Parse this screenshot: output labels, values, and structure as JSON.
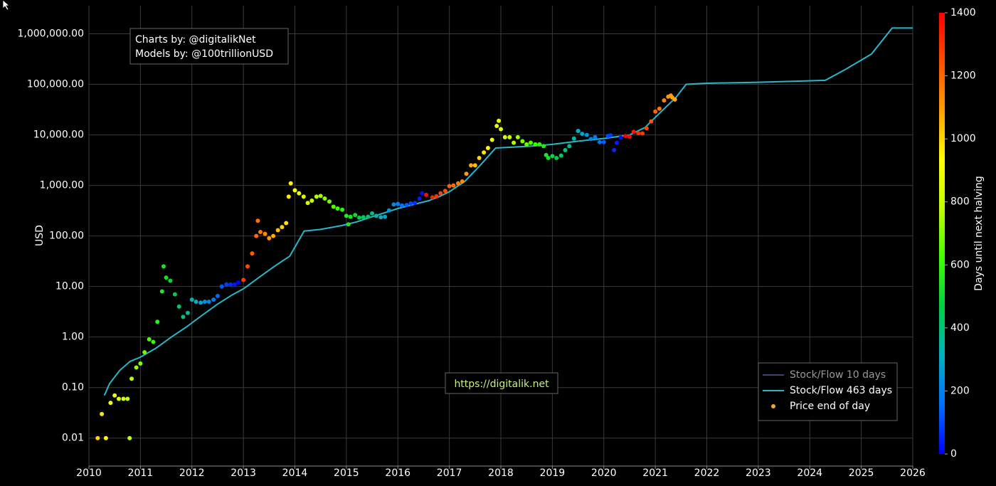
{
  "chart_data": {
    "type": "scatter",
    "log_y": true,
    "grid": true,
    "xlim": [
      2010,
      2026
    ],
    "ylim": [
      0.0028,
      3600000
    ],
    "xticks": [
      2010,
      2011,
      2012,
      2013,
      2014,
      2015,
      2016,
      2017,
      2018,
      2019,
      2020,
      2021,
      2022,
      2023,
      2024,
      2025,
      2026
    ],
    "yticks": [
      {
        "value": 0.01,
        "label": "0.01"
      },
      {
        "value": 0.1,
        "label": "0.10"
      },
      {
        "value": 1,
        "label": "1.00"
      },
      {
        "value": 10,
        "label": "10.00"
      },
      {
        "value": 100,
        "label": "100.00"
      },
      {
        "value": 1000,
        "label": "1,000.00"
      },
      {
        "value": 10000,
        "label": "10,000.00"
      },
      {
        "value": 100000,
        "label": "100,000.00"
      },
      {
        "value": 1000000,
        "label": "1,000,000.00"
      }
    ],
    "ylabel": "USD",
    "annotations": [
      "Charts by: @digitalikNet",
      "Models by: @100trillionUSD",
      "https://digitalik.net"
    ],
    "legend": "lower right",
    "colorbar": {
      "label": "Days until next halving",
      "lim": [
        0,
        1400
      ],
      "ticks": [
        0,
        200,
        400,
        600,
        800,
        1000,
        1200,
        1400
      ],
      "colorscale": [
        "#0000ff",
        "#0070ff",
        "#00b0c0",
        "#00d040",
        "#40ff00",
        "#c0ff00",
        "#ffff00",
        "#ffa000",
        "#ff5000",
        "#ff0000"
      ]
    },
    "series": [
      {
        "name": "Stock/Flow 10 days",
        "type": "line",
        "color": "#3c4170",
        "x": [],
        "values": []
      },
      {
        "name": "Stock/Flow 463 days",
        "type": "line",
        "color": "#29b6c9",
        "x": [
          2010.3,
          2010.4,
          2010.6,
          2010.8,
          2011.0,
          2011.3,
          2011.6,
          2011.9,
          2012.2,
          2012.5,
          2012.8,
          2013.0,
          2013.3,
          2013.6,
          2013.9,
          2014.18,
          2014.5,
          2014.9,
          2015.2,
          2015.5,
          2015.8,
          2016.0,
          2016.3,
          2016.6,
          2016.8,
          2017.0,
          2017.3,
          2017.6,
          2017.9,
          2018.2,
          2018.6,
          2019.0,
          2019.5,
          2020.0,
          2020.5,
          2020.8,
          2021.1,
          2021.4,
          2021.6,
          2022.0,
          2023.0,
          2024.3,
          2024.7,
          2025.2,
          2025.6,
          2026.0
        ],
        "values": [
          0.07,
          0.12,
          0.22,
          0.33,
          0.4,
          0.6,
          1.0,
          1.6,
          2.7,
          4.5,
          7,
          9,
          15,
          25,
          40,
          125,
          135,
          160,
          190,
          240,
          300,
          350,
          420,
          500,
          600,
          750,
          1200,
          2500,
          5500,
          5700,
          6000,
          6500,
          7500,
          8500,
          10000,
          14000,
          28000,
          55000,
          100000,
          105000,
          110000,
          120000,
          200000,
          400000,
          1300000,
          1300000
        ]
      },
      {
        "name": "Price end of day",
        "type": "scatter",
        "color": "#f5a623",
        "x": [
          2010.17,
          2010.25,
          2010.33,
          2010.42,
          2010.5,
          2010.58,
          2010.67,
          2010.75,
          2010.79,
          2010.83,
          2010.92,
          2011.0,
          2011.08,
          2011.17,
          2011.25,
          2011.33,
          2011.42,
          2011.45,
          2011.5,
          2011.58,
          2011.67,
          2011.75,
          2011.83,
          2011.92,
          2012.0,
          2012.08,
          2012.17,
          2012.25,
          2012.33,
          2012.42,
          2012.5,
          2012.58,
          2012.67,
          2012.75,
          2012.83,
          2012.9,
          2013.0,
          2013.08,
          2013.17,
          2013.25,
          2013.28,
          2013.33,
          2013.42,
          2013.5,
          2013.58,
          2013.67,
          2013.75,
          2013.83,
          2013.88,
          2013.92,
          2014.0,
          2014.08,
          2014.17,
          2014.25,
          2014.33,
          2014.42,
          2014.5,
          2014.58,
          2014.67,
          2014.75,
          2014.83,
          2014.92,
          2015.0,
          2015.04,
          2015.08,
          2015.17,
          2015.25,
          2015.33,
          2015.42,
          2015.5,
          2015.58,
          2015.67,
          2015.75,
          2015.83,
          2015.92,
          2016.0,
          2016.08,
          2016.17,
          2016.25,
          2016.33,
          2016.42,
          2016.47,
          2016.55,
          2016.67,
          2016.75,
          2016.83,
          2016.92,
          2017.0,
          2017.08,
          2017.17,
          2017.25,
          2017.33,
          2017.42,
          2017.5,
          2017.58,
          2017.67,
          2017.75,
          2017.83,
          2017.92,
          2017.96,
          2018.0,
          2018.08,
          2018.17,
          2018.25,
          2018.33,
          2018.42,
          2018.5,
          2018.58,
          2018.67,
          2018.75,
          2018.83,
          2018.88,
          2018.92,
          2019.0,
          2019.08,
          2019.17,
          2019.25,
          2019.33,
          2019.42,
          2019.5,
          2019.58,
          2019.67,
          2019.75,
          2019.83,
          2019.92,
          2020.0,
          2020.08,
          2020.13,
          2020.2,
          2020.25,
          2020.33,
          2020.42,
          2020.5,
          2020.58,
          2020.67,
          2020.75,
          2020.83,
          2020.92,
          2021.0,
          2021.08,
          2021.17,
          2021.25,
          2021.3,
          2021.33,
          2021.38
        ],
        "values": [
          0.01,
          0.03,
          0.01,
          0.05,
          0.07,
          0.06,
          0.06,
          0.06,
          0.01,
          0.15,
          0.25,
          0.3,
          0.5,
          0.9,
          0.8,
          2.0,
          8.0,
          25,
          15,
          13,
          7,
          4,
          2.5,
          3.0,
          5.5,
          5.0,
          4.8,
          5.0,
          5.0,
          5.5,
          6.5,
          10,
          11,
          11,
          11,
          12,
          13.5,
          25,
          45,
          100,
          200,
          120,
          110,
          90,
          100,
          130,
          150,
          180,
          600,
          1100,
          800,
          700,
          600,
          450,
          500,
          600,
          620,
          550,
          480,
          380,
          350,
          330,
          250,
          170,
          240,
          260,
          230,
          235,
          240,
          280,
          250,
          235,
          240,
          320,
          420,
          430,
          400,
          410,
          440,
          450,
          550,
          700,
          650,
          580,
          610,
          700,
          780,
          970,
          1000,
          1100,
          1200,
          1700,
          2500,
          2500,
          3500,
          4500,
          5500,
          8000,
          15000,
          19000,
          13000,
          9000,
          9000,
          7000,
          9000,
          7500,
          6500,
          7000,
          6500,
          6500,
          6000,
          4000,
          3500,
          3800,
          3500,
          3900,
          5000,
          6000,
          8500,
          12000,
          10500,
          10000,
          8300,
          9000,
          7200,
          7200,
          9500,
          9800,
          5000,
          7000,
          8800,
          9500,
          9200,
          11500,
          10800,
          10700,
          13500,
          18500,
          29000,
          33000,
          48000,
          57000,
          60000,
          55000,
          50000
        ],
        "days": [
          1004,
          975,
          942,
          909,
          880,
          850,
          818,
          788,
          774,
          759,
          726,
          697,
          668,
          635,
          606,
          577,
          544,
          533,
          515,
          485,
          453,
          423,
          394,
          361,
          332,
          303,
          270,
          241,
          212,
          179,
          150,
          120,
          88,
          58,
          29,
          4,
          1285,
          1256,
          1223,
          1194,
          1183,
          1165,
          1132,
          1102,
          1073,
          1040,
          1011,
          982,
          964,
          949,
          920,
          891,
          858,
          829,
          800,
          767,
          738,
          708,
          675,
          646,
          617,
          584,
          555,
          540,
          526,
          493,
          464,
          434,
          401,
          372,
          343,
          310,
          281,
          252,
          219,
          190,
          161,
          128,
          99,
          69,
          37,
          18,
          1380,
          1336,
          1307,
          1278,
          1248,
          1219,
          1190,
          1157,
          1128,
          1099,
          1066,
          1037,
          1008,
          975,
          946,
          916,
          884,
          869,
          855,
          826,
          793,
          763,
          734,
          701,
          672,
          643,
          610,
          580,
          551,
          533,
          518,
          489,
          460,
          434,
          398,
          369,
          336,
          307,
          277,
          245,
          215,
          186,
          161,
          131,
          102,
          84,
          58,
          40,
          11,
          1416,
          1387,
          1358,
          1325,
          1296,
          1267,
          1234,
          1205,
          1176,
          1142,
          1113,
          1095,
          1084,
          1066
        ]
      }
    ]
  }
}
